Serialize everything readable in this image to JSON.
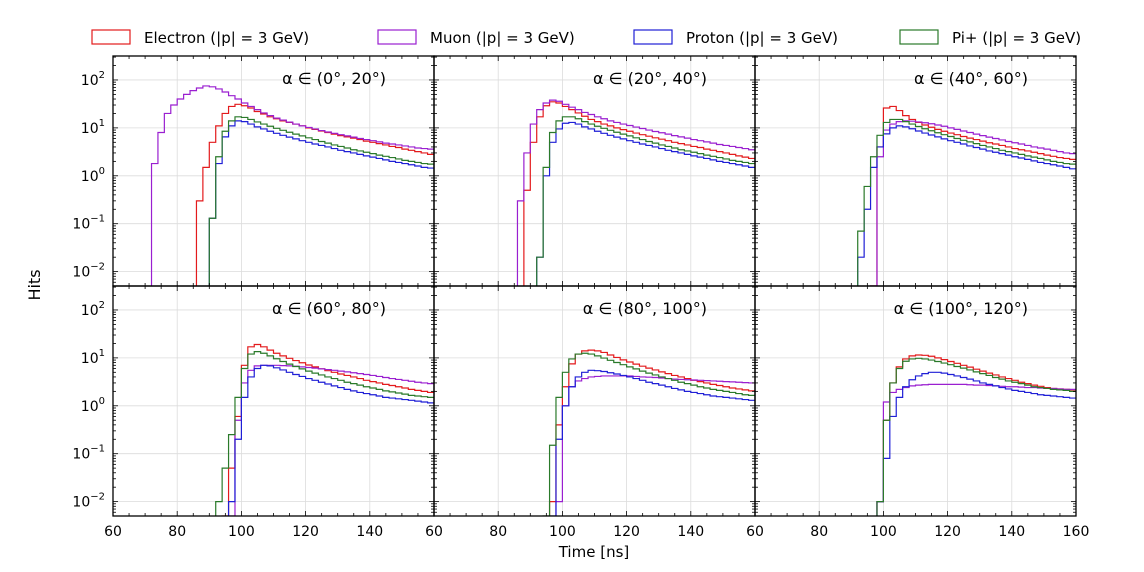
{
  "figure": {
    "y_label": "Hits",
    "x_label": "Time [ns]",
    "legend": [
      {
        "name": "Electron",
        "label": "Electron (|p| = 3 GeV)",
        "color": "#e31a1c"
      },
      {
        "name": "Muon",
        "label": "Muon (|p| = 3 GeV)",
        "color": "#9a1fd0"
      },
      {
        "name": "Proton",
        "label": "Proton (|p| = 3 GeV)",
        "color": "#1f1fd6"
      },
      {
        "name": "Pi+",
        "label": "Pi+ (|p| = 3 GeV)",
        "color": "#2a7a2a"
      }
    ]
  },
  "chart_data": [
    {
      "type": "line",
      "title": "α ∈ (0°, 20°)",
      "xlim": [
        60,
        160
      ],
      "ylim_log10": [
        -2.3,
        2.5
      ],
      "x_step_ns": 2,
      "series": [
        {
          "name": "Electron",
          "start_ns": 86,
          "values": [
            0.3,
            1.5,
            5,
            11,
            20,
            28,
            31,
            29,
            26,
            22,
            19.5,
            17,
            15.5,
            14,
            13,
            12,
            11,
            10,
            9.3,
            8.6,
            8,
            7.4,
            6.9,
            6.5,
            6.1,
            5.7,
            5.3,
            5,
            4.7,
            4.4,
            4.1,
            3.9,
            3.6,
            3.4,
            3.2,
            3.0,
            2.8
          ]
        },
        {
          "name": "Muon",
          "start_ns": 72,
          "values": [
            1.8,
            8,
            20,
            30,
            40,
            50,
            60,
            68,
            75,
            72,
            65,
            56,
            47,
            40,
            33,
            28,
            24,
            20.5,
            18,
            16,
            14.5,
            13.2,
            12,
            11,
            10.2,
            9.5,
            8.8,
            8.2,
            7.7,
            7.2,
            6.8,
            6.4,
            6.0,
            5.7,
            5.4,
            5.1,
            4.8,
            4.6,
            4.4,
            4.2,
            4.0,
            3.8,
            3.7,
            3.6
          ]
        },
        {
          "name": "Proton",
          "start_ns": 90,
          "values": [
            0.13,
            1.8,
            6.5,
            11,
            14,
            13.5,
            12,
            10.5,
            9.5,
            8.5,
            7.7,
            7,
            6.4,
            5.9,
            5.4,
            5,
            4.6,
            4.3,
            4,
            3.7,
            3.4,
            3.2,
            3,
            2.8,
            2.6,
            2.45,
            2.3,
            2.15,
            2,
            1.9,
            1.8,
            1.7,
            1.6,
            1.5,
            1.45
          ]
        },
        {
          "name": "Pi+",
          "start_ns": 90,
          "values": [
            0.13,
            2.5,
            8.5,
            14,
            17,
            16.5,
            15,
            13.3,
            12,
            10.8,
            9.8,
            8.9,
            8.1,
            7.4,
            6.8,
            6.2,
            5.7,
            5.2,
            4.8,
            4.4,
            4.1,
            3.8,
            3.5,
            3.3,
            3.1,
            2.9,
            2.7,
            2.55,
            2.4,
            2.25,
            2.1,
            2.0,
            1.9,
            1.8,
            1.75
          ]
        }
      ]
    },
    {
      "type": "line",
      "title": "α ∈ (20°, 40°)",
      "xlim": [
        60,
        160
      ],
      "ylim_log10": [
        -2.3,
        2.5
      ],
      "x_step_ns": 2,
      "series": [
        {
          "name": "Electron",
          "start_ns": 88,
          "values": [
            0.5,
            5,
            17,
            29,
            35,
            33,
            28,
            24,
            20.5,
            17.5,
            15,
            13.5,
            12,
            11,
            10,
            9.2,
            8.5,
            7.8,
            7.2,
            6.7,
            6.2,
            5.8,
            5.4,
            5,
            4.7,
            4.4,
            4.1,
            3.9,
            3.6,
            3.4,
            3.2,
            3.0,
            2.8,
            2.6,
            2.45,
            2.3
          ]
        },
        {
          "name": "Muon",
          "start_ns": 86,
          "values": [
            0.3,
            3,
            12,
            24,
            33,
            38,
            36,
            31,
            27,
            24,
            21,
            19,
            17,
            15.5,
            14,
            13,
            12,
            11.2,
            10.4,
            9.7,
            9,
            8.4,
            7.9,
            7.4,
            6.9,
            6.5,
            6.1,
            5.7,
            5.4,
            5.1,
            4.8,
            4.5,
            4.3,
            4.1,
            3.9,
            3.7,
            3.5,
            3.35
          ]
        },
        {
          "name": "Proton",
          "start_ns": 92,
          "values": [
            0.02,
            1,
            5,
            9.5,
            12.5,
            13,
            12,
            10.5,
            9.5,
            8.5,
            7.7,
            7,
            6.4,
            5.9,
            5.4,
            5,
            4.6,
            4.3,
            4,
            3.7,
            3.4,
            3.2,
            3,
            2.8,
            2.6,
            2.45,
            2.3,
            2.15,
            2,
            1.9,
            1.8,
            1.7,
            1.6,
            1.5
          ]
        },
        {
          "name": "Pi+",
          "start_ns": 92,
          "values": [
            0.02,
            1.5,
            8,
            14,
            17,
            17,
            15.5,
            13.5,
            12,
            10.8,
            9.8,
            8.9,
            8.1,
            7.4,
            6.8,
            6.2,
            5.7,
            5.2,
            4.8,
            4.4,
            4.1,
            3.8,
            3.5,
            3.3,
            3.1,
            2.9,
            2.7,
            2.55,
            2.4,
            2.25,
            2.1,
            2.0,
            1.9,
            1.8
          ]
        }
      ]
    },
    {
      "type": "line",
      "title": "α ∈ (40°, 60°)",
      "xlim": [
        60,
        160
      ],
      "ylim_log10": [
        -2.3,
        2.5
      ],
      "x_step_ns": 2,
      "series": [
        {
          "name": "Electron",
          "start_ns": 96,
          "values": [
            0.005,
            4,
            26,
            28,
            23,
            18,
            15,
            13,
            11.5,
            10.3,
            9.3,
            8.5,
            7.8,
            7.2,
            6.6,
            6.1,
            5.7,
            5.3,
            4.9,
            4.6,
            4.3,
            4,
            3.7,
            3.5,
            3.3,
            3.1,
            2.9,
            2.7,
            2.55,
            2.4,
            2.3,
            2.2
          ]
        },
        {
          "name": "Muon",
          "start_ns": 96,
          "values": [
            0.005,
            2.5,
            9,
            12,
            13.5,
            14,
            13.8,
            13.3,
            12.8,
            12.2,
            11.5,
            10.8,
            10,
            9.3,
            8.6,
            8,
            7.4,
            6.9,
            6.4,
            6,
            5.6,
            5.2,
            4.9,
            4.6,
            4.3,
            4,
            3.8,
            3.6,
            3.4,
            3.2,
            3.0,
            2.9
          ]
        },
        {
          "name": "Proton",
          "start_ns": 92,
          "values": [
            0.02,
            0.2,
            1.5,
            4,
            7.5,
            10,
            11,
            10.5,
            9.6,
            8.6,
            7.8,
            7.1,
            6.5,
            5.9,
            5.4,
            5,
            4.6,
            4.2,
            3.9,
            3.6,
            3.3,
            3.1,
            2.9,
            2.7,
            2.5,
            2.35,
            2.2,
            2.05,
            1.9,
            1.8,
            1.7,
            1.6,
            1.5,
            1.4
          ]
        },
        {
          "name": "Pi+",
          "start_ns": 92,
          "values": [
            0.07,
            0.6,
            2.5,
            7,
            13,
            15,
            15,
            13.5,
            12,
            10.7,
            9.6,
            8.7,
            7.9,
            7.2,
            6.6,
            6,
            5.5,
            5.1,
            4.7,
            4.3,
            4,
            3.7,
            3.4,
            3.2,
            3,
            2.8,
            2.6,
            2.45,
            2.3,
            2.15,
            2,
            1.9,
            1.8,
            1.75
          ]
        }
      ]
    },
    {
      "type": "line",
      "title": "α ∈ (60°, 80°)",
      "xlim": [
        60,
        160
      ],
      "ylim_log10": [
        -2.3,
        2.5
      ],
      "x_step_ns": 2,
      "series": [
        {
          "name": "Electron",
          "start_ns": 94,
          "values": [
            0.005,
            0.05,
            0.6,
            7,
            17,
            19,
            17,
            14.5,
            12.5,
            11,
            9.8,
            8.8,
            7.9,
            7.1,
            6.5,
            5.9,
            5.4,
            5,
            4.6,
            4.3,
            4,
            3.7,
            3.4,
            3.2,
            3,
            2.8,
            2.65,
            2.5,
            2.35,
            2.2,
            2.1,
            2.0,
            1.9
          ]
        },
        {
          "name": "Muon",
          "start_ns": 96,
          "values": [
            0.005,
            0.5,
            3,
            5.5,
            6.8,
            7,
            7,
            7,
            6.9,
            6.8,
            6.7,
            6.5,
            6.3,
            6.1,
            5.9,
            5.7,
            5.5,
            5.3,
            5.1,
            4.9,
            4.7,
            4.5,
            4.3,
            4.1,
            3.9,
            3.7,
            3.55,
            3.4,
            3.25,
            3.1,
            3.0,
            2.9
          ]
        },
        {
          "name": "Proton",
          "start_ns": 96,
          "values": [
            0.01,
            0.2,
            1.5,
            4,
            6,
            7,
            6.8,
            6.2,
            5.6,
            5,
            4.5,
            4.1,
            3.7,
            3.4,
            3.1,
            2.85,
            2.6,
            2.4,
            2.2,
            2.05,
            1.9,
            1.8,
            1.7,
            1.6,
            1.5,
            1.45,
            1.4,
            1.35,
            1.3,
            1.25,
            1.2,
            1.15
          ]
        },
        {
          "name": "Pi+",
          "start_ns": 92,
          "values": [
            0.01,
            0.05,
            0.25,
            1.5,
            6,
            12,
            13.5,
            12.5,
            11,
            9.6,
            8.4,
            7.4,
            6.6,
            5.9,
            5.3,
            4.8,
            4.4,
            4,
            3.7,
            3.4,
            3.1,
            2.9,
            2.7,
            2.5,
            2.35,
            2.2,
            2.05,
            1.95,
            1.85,
            1.75,
            1.65,
            1.6,
            1.55,
            1.5
          ]
        }
      ]
    },
    {
      "type": "line",
      "title": "α ∈ (80°, 100°)",
      "xlim": [
        60,
        160
      ],
      "ylim_log10": [
        -2.3,
        2.5
      ],
      "x_step_ns": 2,
      "series": [
        {
          "name": "Electron",
          "start_ns": 96,
          "values": [
            0.01,
            0.4,
            2.5,
            7.5,
            12,
            14,
            14.5,
            14,
            13,
            11.5,
            10.2,
            9.1,
            8.2,
            7.4,
            6.7,
            6.1,
            5.6,
            5.1,
            4.7,
            4.3,
            4,
            3.7,
            3.4,
            3.2,
            3,
            2.8,
            2.65,
            2.5,
            2.35,
            2.25,
            2.15,
            2.05
          ]
        },
        {
          "name": "Muon",
          "start_ns": 98,
          "values": [
            0.01,
            1,
            2.5,
            3.3,
            3.7,
            4,
            4.1,
            4.2,
            4.2,
            4.2,
            4.2,
            4.2,
            4.1,
            4,
            3.95,
            3.9,
            3.8,
            3.7,
            3.6,
            3.55,
            3.5,
            3.45,
            3.4,
            3.35,
            3.3,
            3.25,
            3.2,
            3.15,
            3.1,
            3.05,
            3.0
          ]
        },
        {
          "name": "Proton",
          "start_ns": 96,
          "values": [
            0.005,
            0.2,
            1,
            2.5,
            4,
            5,
            5.5,
            5.4,
            5.2,
            4.9,
            4.6,
            4.3,
            4,
            3.7,
            3.4,
            3.1,
            2.9,
            2.7,
            2.5,
            2.3,
            2.15,
            2,
            1.9,
            1.8,
            1.7,
            1.6,
            1.55,
            1.5,
            1.45,
            1.4,
            1.35,
            1.3
          ]
        },
        {
          "name": "Pi+",
          "start_ns": 94,
          "values": [
            0.005,
            0.15,
            1.5,
            5,
            9.5,
            12,
            12.5,
            12,
            11,
            9.9,
            8.9,
            8,
            7.2,
            6.5,
            5.9,
            5.3,
            4.8,
            4.4,
            4,
            3.7,
            3.4,
            3.1,
            2.9,
            2.7,
            2.5,
            2.35,
            2.2,
            2.1,
            2.0,
            1.9,
            1.8,
            1.7,
            1.65
          ]
        }
      ]
    },
    {
      "type": "line",
      "title": "α ∈ (100°, 120°)",
      "xlim": [
        60,
        160
      ],
      "ylim_log10": [
        -2.3,
        2.5
      ],
      "x_step_ns": 2,
      "series": [
        {
          "name": "Electron",
          "start_ns": 98,
          "values": [
            0.01,
            0.5,
            3,
            6.5,
            9.5,
            11,
            11.5,
            11.3,
            10.8,
            10,
            9.2,
            8.4,
            7.7,
            7,
            6.4,
            5.8,
            5.3,
            4.8,
            4.4,
            4,
            3.7,
            3.4,
            3.1,
            2.9,
            2.7,
            2.55,
            2.4,
            2.3,
            2.25,
            2.2,
            2.15
          ]
        },
        {
          "name": "Muon",
          "start_ns": 98,
          "values": [
            0.01,
            1.2,
            1.9,
            2.2,
            2.4,
            2.6,
            2.7,
            2.75,
            2.8,
            2.8,
            2.8,
            2.8,
            2.8,
            2.8,
            2.75,
            2.7,
            2.7,
            2.65,
            2.6,
            2.55,
            2.5,
            2.5,
            2.45,
            2.4,
            2.4,
            2.35,
            2.3,
            2.3,
            2.25,
            2.2,
            2.2
          ]
        },
        {
          "name": "Proton",
          "start_ns": 98,
          "values": [
            0.01,
            0.08,
            0.6,
            1.5,
            2.5,
            3.5,
            4.2,
            4.7,
            5,
            5,
            4.8,
            4.5,
            4.2,
            3.9,
            3.6,
            3.3,
            3,
            2.8,
            2.6,
            2.4,
            2.25,
            2.1,
            2,
            1.9,
            1.8,
            1.7,
            1.65,
            1.6,
            1.55,
            1.5,
            1.45
          ]
        },
        {
          "name": "Pi+",
          "start_ns": 98,
          "values": [
            0.01,
            0.5,
            3,
            6,
            8.5,
            9.5,
            9.8,
            9.5,
            9,
            8.4,
            7.8,
            7.2,
            6.6,
            6.1,
            5.6,
            5.1,
            4.7,
            4.3,
            3.9,
            3.6,
            3.3,
            3.1,
            2.9,
            2.7,
            2.5,
            2.4,
            2.3,
            2.2,
            2.15,
            2.1,
            2.0
          ]
        }
      ]
    }
  ]
}
